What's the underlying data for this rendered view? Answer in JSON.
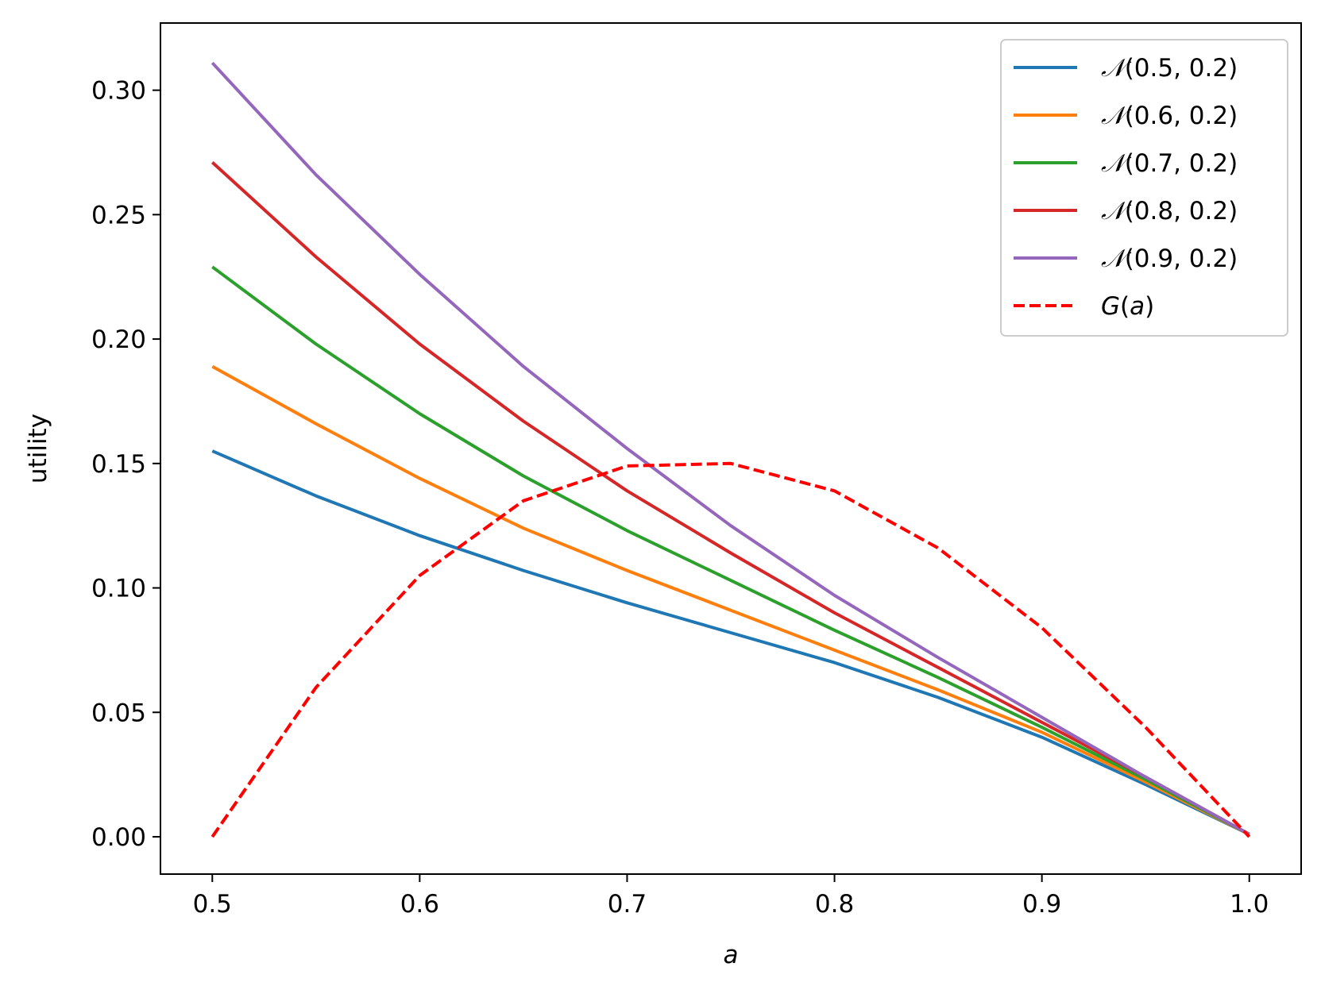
{
  "chart_data": {
    "type": "line",
    "title": "",
    "xlabel": "a",
    "ylabel": "utility",
    "xlim": [
      0.475,
      1.025
    ],
    "ylim": [
      -0.015,
      0.327
    ],
    "xticks": [
      0.5,
      0.6,
      0.7,
      0.8,
      0.9,
      1.0
    ],
    "xtick_labels": [
      "0.5",
      "0.6",
      "0.7",
      "0.8",
      "0.9",
      "1.0"
    ],
    "yticks": [
      0.0,
      0.05,
      0.1,
      0.15,
      0.2,
      0.25,
      0.3
    ],
    "ytick_labels": [
      "0.00",
      "0.05",
      "0.10",
      "0.15",
      "0.20",
      "0.25",
      "0.30"
    ],
    "grid": false,
    "legend_position": "top-right",
    "x": [
      0.5,
      0.55,
      0.6,
      0.65,
      0.7,
      0.75,
      0.8,
      0.85,
      0.9,
      0.95,
      1.0
    ],
    "series": [
      {
        "name": "N(0.5, 0.2)",
        "legend_prefix": "𝒩",
        "legend_args": "(0.5, 0.2)",
        "color": "#1f77b4",
        "style": "solid",
        "values": [
          0.155,
          0.137,
          0.121,
          0.107,
          0.094,
          0.082,
          0.07,
          0.056,
          0.04,
          0.021,
          0.001
        ]
      },
      {
        "name": "N(0.6, 0.2)",
        "legend_prefix": "𝒩",
        "legend_args": "(0.6, 0.2)",
        "color": "#ff7f0e",
        "style": "solid",
        "values": [
          0.189,
          0.166,
          0.144,
          0.124,
          0.107,
          0.091,
          0.075,
          0.059,
          0.042,
          0.022,
          0.001
        ]
      },
      {
        "name": "N(0.7, 0.2)",
        "legend_prefix": "𝒩",
        "legend_args": "(0.7, 0.2)",
        "color": "#2ca02c",
        "style": "solid",
        "values": [
          0.229,
          0.198,
          0.17,
          0.145,
          0.123,
          0.103,
          0.083,
          0.064,
          0.044,
          0.023,
          0.001
        ]
      },
      {
        "name": "N(0.8, 0.2)",
        "legend_prefix": "𝒩",
        "legend_args": "(0.8, 0.2)",
        "color": "#d62728",
        "style": "solid",
        "values": [
          0.271,
          0.233,
          0.198,
          0.167,
          0.139,
          0.114,
          0.09,
          0.068,
          0.046,
          0.024,
          0.001
        ]
      },
      {
        "name": "N(0.9, 0.2)",
        "legend_prefix": "𝒩",
        "legend_args": "(0.9, 0.2)",
        "color": "#9467bd",
        "style": "solid",
        "values": [
          0.311,
          0.266,
          0.226,
          0.189,
          0.156,
          0.125,
          0.097,
          0.072,
          0.048,
          0.024,
          0.001
        ]
      },
      {
        "name": "G(a)",
        "legend_prefix": "G",
        "legend_args": "(a)",
        "color": "#ff0000",
        "style": "dashed",
        "values": [
          0.0,
          0.06,
          0.105,
          0.135,
          0.149,
          0.15,
          0.139,
          0.116,
          0.084,
          0.044,
          0.0
        ]
      }
    ]
  }
}
